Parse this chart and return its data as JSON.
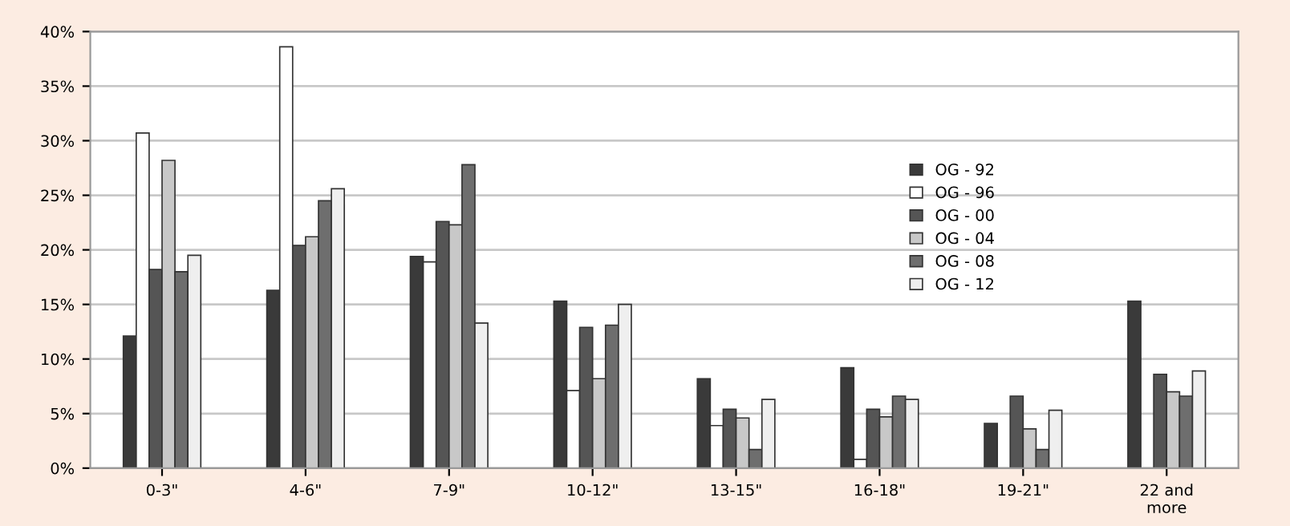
{
  "chart_data": {
    "type": "bar",
    "categories": [
      "0-3\"",
      "4-6\"",
      "7-9\"",
      "10-12\"",
      "13-15\"",
      "16-18\"",
      "19-21\"",
      "22 and\nmore"
    ],
    "series": [
      {
        "name": "OG - 92",
        "color": "#3a3a3a",
        "values": [
          12.1,
          16.3,
          19.4,
          15.3,
          8.2,
          9.2,
          4.1,
          15.3
        ]
      },
      {
        "name": "OG - 96",
        "color": "#ffffff",
        "values": [
          30.7,
          38.6,
          18.9,
          7.1,
          3.9,
          0.8,
          null,
          null
        ]
      },
      {
        "name": "OG - 00",
        "color": "#555555",
        "values": [
          18.2,
          20.4,
          22.6,
          12.9,
          5.4,
          5.4,
          6.6,
          8.6
        ]
      },
      {
        "name": "OG - 04",
        "color": "#c8c8c8",
        "values": [
          28.2,
          21.2,
          22.3,
          8.2,
          4.6,
          4.7,
          3.6,
          7.0
        ]
      },
      {
        "name": "OG - 08",
        "color": "#6e6e6e",
        "values": [
          18.0,
          24.5,
          27.8,
          13.1,
          1.7,
          6.6,
          1.7,
          6.6
        ]
      },
      {
        "name": "OG - 12",
        "color": "#efefef",
        "values": [
          19.5,
          25.6,
          13.3,
          15.0,
          6.3,
          6.3,
          5.3,
          8.9
        ]
      }
    ],
    "ylim": [
      0,
      40
    ],
    "yticks": [
      {
        "value": 0,
        "label": "0%"
      },
      {
        "value": 5,
        "label": "5%"
      },
      {
        "value": 10,
        "label": "10%"
      },
      {
        "value": 15,
        "label": "15%"
      },
      {
        "value": 20,
        "label": "20%"
      },
      {
        "value": 25,
        "label": "25%"
      },
      {
        "value": 30,
        "label": "30%"
      },
      {
        "value": 35,
        "label": "35%"
      },
      {
        "value": 40,
        "label": "40%"
      }
    ],
    "grid": "y",
    "legend": "right"
  }
}
